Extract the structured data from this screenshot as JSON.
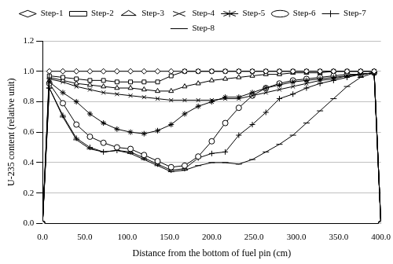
{
  "chart_data": {
    "type": "line",
    "x_label": "Distance from the bottom of fuel pin (cm)",
    "y_label": "U-235 content (relative unit)",
    "x": [
      0,
      8,
      24,
      40,
      56,
      72,
      88,
      104,
      120,
      136,
      152,
      168,
      184,
      200,
      216,
      232,
      248,
      264,
      280,
      296,
      312,
      328,
      344,
      360,
      376,
      392,
      400
    ],
    "series": [
      {
        "name": "Step-1",
        "color": "#000000",
        "marker": "diamond",
        "values": [
          0,
          1.0,
          1.0,
          1.0,
          1.0,
          1.0,
          1.0,
          1.0,
          1.0,
          1.0,
          1.0,
          1.0,
          1.0,
          1.0,
          1.0,
          1.0,
          1.0,
          1.0,
          1.0,
          1.0,
          1.0,
          1.0,
          1.0,
          1.0,
          1.0,
          1.0,
          0
        ]
      },
      {
        "name": "Step-2",
        "color": "#000000",
        "marker": "square",
        "values": [
          0,
          0.97,
          0.96,
          0.95,
          0.94,
          0.94,
          0.93,
          0.93,
          0.93,
          0.93,
          0.97,
          1.0,
          1.0,
          1.0,
          1.0,
          1.0,
          1.0,
          1.0,
          1.0,
          1.0,
          1.0,
          1.0,
          1.0,
          1.0,
          1.0,
          1.0,
          0
        ]
      },
      {
        "name": "Step-3",
        "color": "#000000",
        "marker": "triangle",
        "values": [
          0,
          0.96,
          0.94,
          0.92,
          0.91,
          0.9,
          0.89,
          0.89,
          0.88,
          0.87,
          0.87,
          0.9,
          0.92,
          0.94,
          0.95,
          0.96,
          0.97,
          0.98,
          0.98,
          0.99,
          0.99,
          0.99,
          1.0,
          1.0,
          1.0,
          1.0,
          0
        ]
      },
      {
        "name": "Step-4",
        "color": "#000000",
        "marker": "x",
        "values": [
          0,
          0.95,
          0.93,
          0.9,
          0.88,
          0.86,
          0.85,
          0.84,
          0.83,
          0.82,
          0.81,
          0.81,
          0.81,
          0.81,
          0.82,
          0.82,
          0.84,
          0.86,
          0.88,
          0.9,
          0.92,
          0.94,
          0.95,
          0.97,
          0.98,
          0.99,
          0
        ]
      },
      {
        "name": "Step-5",
        "color": "#000000",
        "marker": "star",
        "values": [
          0,
          0.93,
          0.86,
          0.8,
          0.72,
          0.66,
          0.62,
          0.6,
          0.59,
          0.61,
          0.65,
          0.72,
          0.77,
          0.8,
          0.83,
          0.83,
          0.86,
          0.89,
          0.91,
          0.93,
          0.94,
          0.95,
          0.96,
          0.97,
          0.98,
          0.99,
          0
        ]
      },
      {
        "name": "Step-6",
        "color": "#000000",
        "marker": "circle",
        "values": [
          0,
          0.92,
          0.79,
          0.65,
          0.57,
          0.53,
          0.5,
          0.49,
          0.45,
          0.41,
          0.37,
          0.38,
          0.44,
          0.54,
          0.66,
          0.76,
          0.84,
          0.89,
          0.92,
          0.94,
          0.95,
          0.96,
          0.97,
          0.98,
          0.98,
          0.99,
          0
        ]
      },
      {
        "name": "Step-7",
        "color": "#000000",
        "marker": "plus",
        "values": [
          0,
          0.89,
          0.71,
          0.56,
          0.5,
          0.47,
          0.48,
          0.47,
          0.43,
          0.39,
          0.35,
          0.36,
          0.43,
          0.46,
          0.47,
          0.58,
          0.65,
          0.73,
          0.82,
          0.85,
          0.89,
          0.92,
          0.94,
          0.96,
          0.98,
          0.99,
          0
        ]
      },
      {
        "name": "Step-8",
        "color": "#000000",
        "marker": "dash",
        "values": [
          0,
          0.89,
          0.7,
          0.55,
          0.49,
          0.47,
          0.48,
          0.46,
          0.42,
          0.38,
          0.34,
          0.35,
          0.38,
          0.4,
          0.4,
          0.39,
          0.42,
          0.47,
          0.52,
          0.58,
          0.66,
          0.74,
          0.82,
          0.9,
          0.96,
          0.99,
          0
        ]
      }
    ],
    "xlim": [
      0,
      400
    ],
    "xticks": [
      {
        "value": 0,
        "label": "0.0"
      },
      {
        "value": 50,
        "label": "50.0"
      },
      {
        "value": 100,
        "label": "100.0"
      },
      {
        "value": 150,
        "label": "150.0"
      },
      {
        "value": 200,
        "label": "200.0"
      },
      {
        "value": 250,
        "label": "250.0"
      },
      {
        "value": 300,
        "label": "300.0"
      },
      {
        "value": 350,
        "label": "350.0"
      },
      {
        "value": 400,
        "label": "400.0"
      }
    ],
    "ylim": [
      0,
      1.2
    ],
    "yticks": [
      {
        "value": 0,
        "label": "0.0"
      },
      0.2,
      0.4,
      0.6,
      0.8,
      {
        "value": 1,
        "label": "1.0"
      },
      1.2
    ],
    "grid": "y",
    "legend": "top"
  }
}
